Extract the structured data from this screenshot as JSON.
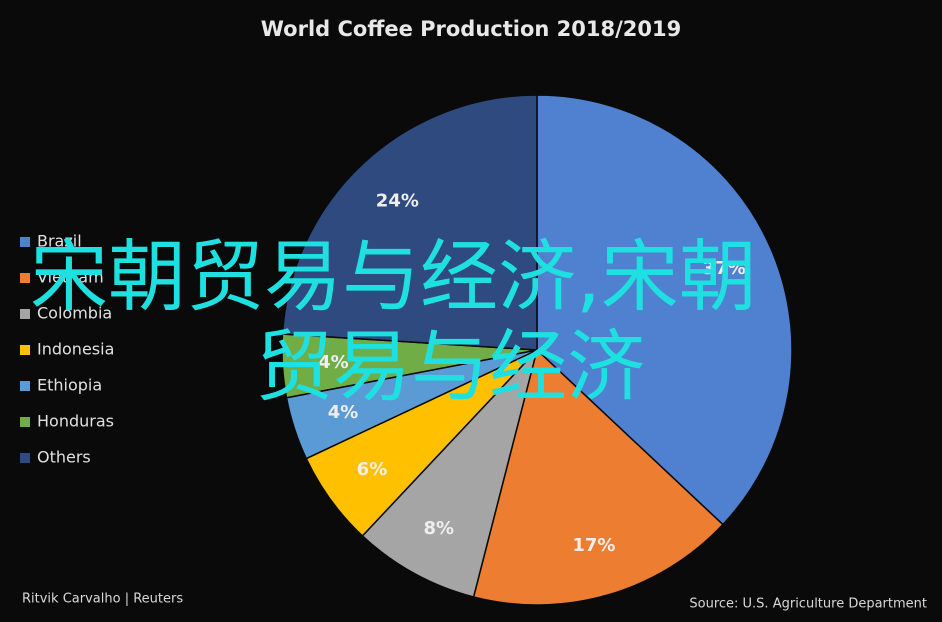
{
  "chart_data": {
    "type": "pie",
    "title": "World Coffee Production 2018/2019",
    "categories": [
      "Brazil",
      "Vietnam",
      "Colombia",
      "Indonesia",
      "Ethiopia",
      "Honduras",
      "Others"
    ],
    "values": [
      37,
      17,
      8,
      6,
      4,
      4,
      24
    ],
    "value_labels": [
      "37%",
      "17%",
      "8%",
      "6%",
      "4%",
      "4%",
      "24%"
    ],
    "colors": [
      "#4f81d0",
      "#ed7d31",
      "#a5a5a5",
      "#ffc000",
      "#5b9bd5",
      "#70ad47",
      "#2e4a7e"
    ],
    "legend": "left",
    "credit": "Ritvik Carvalho | Reuters",
    "source": "Source: U.S. Agriculture Department"
  },
  "overlay_text": [
    "宋朝贸易与经济,宋朝",
    "贸易与经济"
  ]
}
